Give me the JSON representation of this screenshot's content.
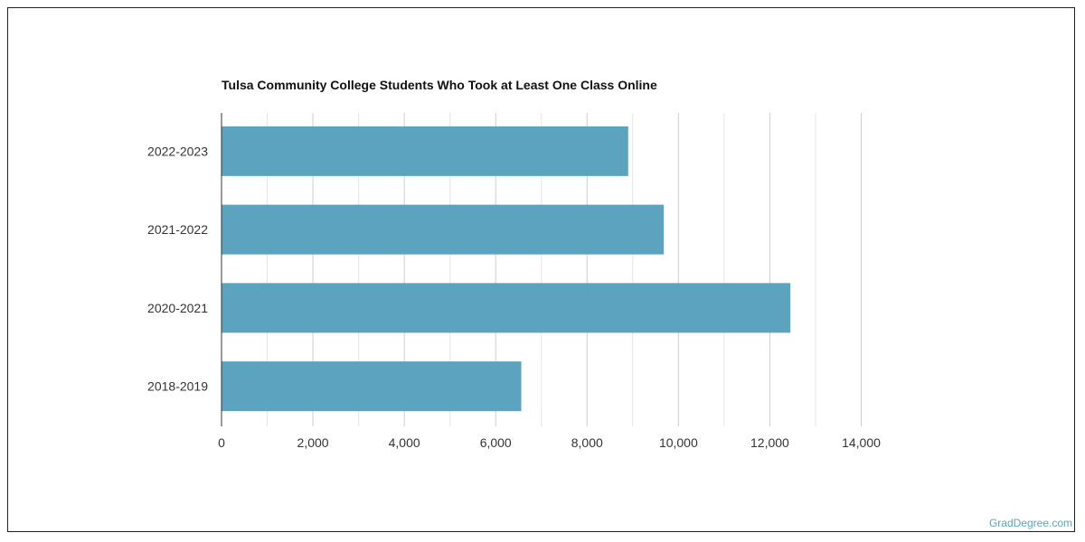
{
  "chart_data": {
    "type": "bar",
    "orientation": "horizontal",
    "title": "Tulsa Community College Students Who Took at Least One Class Online",
    "categories": [
      "2022-2023",
      "2021-2022",
      "2020-2021",
      "2018-2019"
    ],
    "values": [
      8900,
      9680,
      12450,
      6560
    ],
    "xlim": [
      0,
      14000
    ],
    "x_ticks": [
      0,
      2000,
      4000,
      6000,
      8000,
      10000,
      12000,
      14000
    ],
    "x_tick_labels": [
      "0",
      "2,000",
      "4,000",
      "6,000",
      "8,000",
      "10,000",
      "12,000",
      "14,000"
    ],
    "grid": true,
    "bar_color": "#5ba3bf"
  },
  "watermark": "GradDegree.com"
}
